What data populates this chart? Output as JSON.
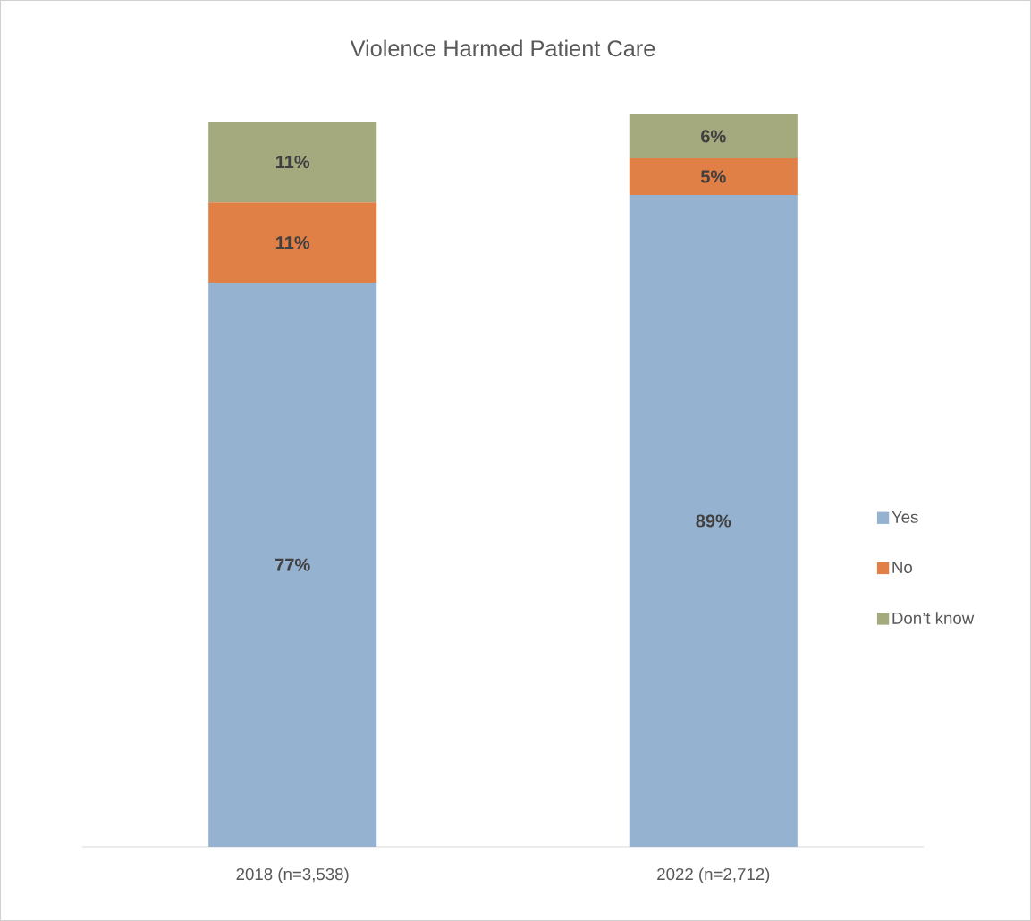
{
  "chart_data": {
    "type": "bar",
    "title": "Violence Harmed Patient Care",
    "categories": [
      "2018 (n=3,538)",
      "2022 (n=2,712)"
    ],
    "stacked": true,
    "legend": "right",
    "series": [
      {
        "name": "Yes",
        "color": "#95b3d1",
        "values": [
          77,
          89
        ],
        "value_labels": [
          "77%",
          "89%"
        ]
      },
      {
        "name": "No",
        "color": "#e07f46",
        "values": [
          11,
          5
        ],
        "value_labels": [
          "11%",
          "5%"
        ]
      },
      {
        "name": "Don’t know",
        "color": "#a4a97e",
        "values": [
          11,
          6
        ],
        "value_labels": [
          "11%",
          "6%"
        ]
      }
    ]
  }
}
